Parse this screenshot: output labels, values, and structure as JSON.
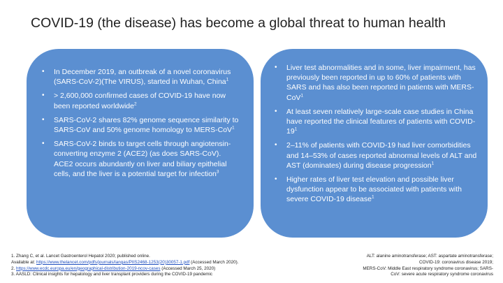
{
  "title": "COVID-19 (the disease) has become a global threat to human health",
  "left_panel": {
    "items": [
      {
        "text": "In December 2019, an outbreak of a novel coronavirus (SARS-CoV-2)(The VIRUS), started in Wuhan, China",
        "sup": "1"
      },
      {
        "text": "> 2,600,000 confirmed cases of COVID-19 have now been reported worldwide",
        "sup": "2"
      },
      {
        "text": "SARS-CoV-2 shares 82% genome sequence similarity to SARS-CoV and 50% genome homology to MERS-CoV",
        "sup": "1"
      },
      {
        "text": "SARS-CoV-2 binds to target cells through angiotensin-converting enzyme 2 (ACE2) (as does SARS-CoV). ACE2 occurs abundantly on liver and biliary epithelial cells, and the liver is a potential target for infection",
        "sup": "3"
      }
    ]
  },
  "right_panel": {
    "items": [
      {
        "text": "Liver test abnormalities and in some, liver impairment, has previously been reported in up to 60% of patients with SARS and has also been reported in patients with MERS-CoV",
        "sup": "1"
      },
      {
        "text": "At least seven relatively large-scale case studies in China have reported the clinical features of patients with COVID-19",
        "sup": "1"
      },
      {
        "text": "2–11% of patients with COVID-19 had liver comorbidities and 14–53% of cases reported abnormal levels of ALT and AST (dominates) during disease progression",
        "sup": "1"
      },
      {
        "text": "Higher rates of liver test elevation and possible liver dysfunction appear to be associated with patients with severe COVID-19 disease",
        "sup": "1"
      }
    ]
  },
  "references": {
    "line1": "1. Zhang C, et al. Lancet Gastroenterol Hepatol 2020; published online.",
    "line2_prefix": "Available at: ",
    "line2_link": "https://www.thelancet.com/pdfs/journals/langas/PIIS2468-1253(20)30057-1.pdf",
    "line2_suffix": " (Accessed March 2020).",
    "line3_prefix": "2. ",
    "line3_link": "https://www.ecdc.europa.eu/en/geographical-distribution-2019-ncov-cases",
    "line3_suffix": " (Accessed March 25, 2020)",
    "line4": "3. AASLD: Clinical insights for hepatology and liver transplant providers during the COVID-19 pandemic"
  },
  "abbreviations": {
    "line1": "ALT: alanine aminotransferase; AST: aspartate aminotransferase;",
    "line2": "COVID-19: coronavirus disease 2019;",
    "line3": "MERS-CoV: Middle East respiratory syndrome coronavirus; SARS-",
    "line4": "CoV: severe acute respiratory syndrome coronavirus"
  },
  "colors": {
    "panel": "#5b8fd1",
    "link": "#1f4fbf"
  },
  "icons": {
    "bullet": "•"
  }
}
